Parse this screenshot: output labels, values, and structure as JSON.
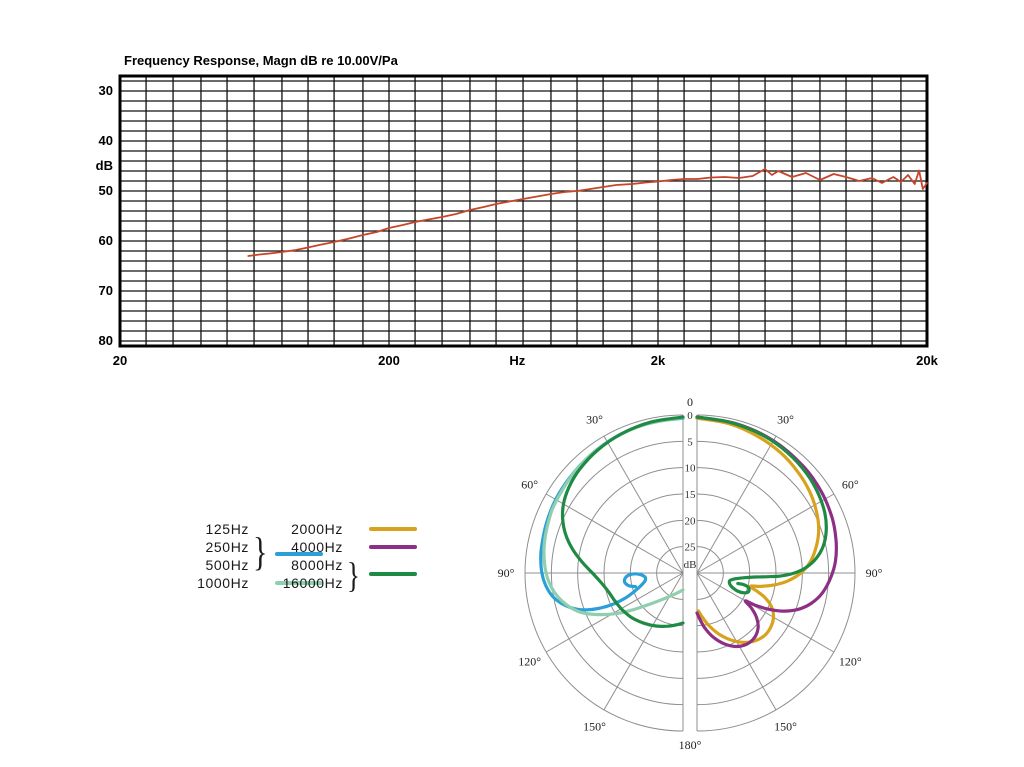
{
  "chart_data": [
    {
      "id": "frequency_response",
      "type": "line",
      "title": "Frequency Response, Magn dB re 10.00V/Pa",
      "line_color": "#c8452a",
      "x_axis": {
        "scale": "log",
        "min": 20,
        "max": 20000,
        "ticks": [
          {
            "f": 20,
            "label": "20"
          },
          {
            "f": 200,
            "label": "200"
          },
          {
            "f": 600,
            "label": "Hz"
          },
          {
            "f": 2000,
            "label": "2k"
          },
          {
            "f": 20000,
            "label": "20k"
          }
        ]
      },
      "y_axis": {
        "min": 27,
        "max": 81,
        "inverted": true,
        "grid_step": 2,
        "ticks": [
          {
            "v": 30,
            "label": "30"
          },
          {
            "v": 40,
            "label": "40"
          },
          {
            "v": 45,
            "label": "dB"
          },
          {
            "v": 50,
            "label": "50"
          },
          {
            "v": 60,
            "label": "60"
          },
          {
            "v": 70,
            "label": "70"
          },
          {
            "v": 80,
            "label": "80"
          }
        ]
      },
      "points": [
        [
          60,
          63
        ],
        [
          66,
          62.7
        ],
        [
          72,
          62.5
        ],
        [
          80,
          62.2
        ],
        [
          90,
          61.8
        ],
        [
          100,
          61.3
        ],
        [
          110,
          60.8
        ],
        [
          125,
          60.2
        ],
        [
          140,
          59.6
        ],
        [
          160,
          58.8
        ],
        [
          180,
          58.2
        ],
        [
          200,
          57.4
        ],
        [
          225,
          56.8
        ],
        [
          250,
          56.2
        ],
        [
          280,
          55.7
        ],
        [
          315,
          55.2
        ],
        [
          355,
          54.6
        ],
        [
          400,
          53.8
        ],
        [
          450,
          53.2
        ],
        [
          500,
          52.6
        ],
        [
          560,
          52.1
        ],
        [
          630,
          51.6
        ],
        [
          710,
          51.1
        ],
        [
          800,
          50.6
        ],
        [
          900,
          50.2
        ],
        [
          1000,
          50.0
        ],
        [
          1120,
          49.6
        ],
        [
          1250,
          49.2
        ],
        [
          1400,
          48.8
        ],
        [
          1600,
          48.6
        ],
        [
          1800,
          48.3
        ],
        [
          2000,
          48.1
        ],
        [
          2240,
          47.8
        ],
        [
          2500,
          47.6
        ],
        [
          2800,
          47.6
        ],
        [
          3150,
          47.3
        ],
        [
          3550,
          47.2
        ],
        [
          4000,
          47.4
        ],
        [
          4500,
          47.0
        ],
        [
          5000,
          45.6
        ],
        [
          5300,
          46.8
        ],
        [
          5600,
          46.0
        ],
        [
          6300,
          47.2
        ],
        [
          7100,
          46.4
        ],
        [
          8000,
          47.8
        ],
        [
          9000,
          46.6
        ],
        [
          10000,
          47.2
        ],
        [
          11200,
          48.0
        ],
        [
          12500,
          47.4
        ],
        [
          13600,
          48.4
        ],
        [
          15000,
          47.2
        ],
        [
          16000,
          48.2
        ],
        [
          17000,
          46.8
        ],
        [
          18000,
          48.6
        ],
        [
          18700,
          45.9
        ],
        [
          19300,
          49.6
        ],
        [
          20000,
          48.4
        ]
      ]
    },
    {
      "id": "polar_pattern",
      "type": "polar",
      "r_axis": {
        "max_db": 30,
        "unit_label": "dB",
        "labels": [
          {
            "db": 0,
            "label": "0"
          },
          {
            "db": 5,
            "label": "5"
          },
          {
            "db": 10,
            "label": "10"
          },
          {
            "db": 15,
            "label": "15"
          },
          {
            "db": 20,
            "label": "20"
          },
          {
            "db": 25,
            "label": "25"
          }
        ]
      },
      "angle_labels": {
        "top": "0",
        "bottom": "180°",
        "sides": [
          {
            "deg": 30,
            "label": "30°"
          },
          {
            "deg": 60,
            "label": "60°"
          },
          {
            "deg": 90,
            "label": "90°"
          },
          {
            "deg": 120,
            "label": "120°"
          },
          {
            "deg": 150,
            "label": "150°"
          }
        ]
      },
      "series": [
        {
          "name": "125-500Hz",
          "color": "#2b9fd8",
          "side": "left",
          "points": [
            [
              0,
              0.6
            ],
            [
              10,
              0.8
            ],
            [
              20,
              1.0
            ],
            [
              30,
              1.3
            ],
            [
              40,
              1.6
            ],
            [
              50,
              1.9
            ],
            [
              60,
              2.1
            ],
            [
              70,
              2.4
            ],
            [
              80,
              2.7
            ],
            [
              85,
              2.9
            ],
            [
              90,
              3.2
            ],
            [
              95,
              3.8
            ],
            [
              100,
              4.8
            ],
            [
              104,
              6.2
            ],
            [
              108,
              8.2
            ],
            [
              111,
              10.5
            ],
            [
              113,
              13
            ],
            [
              114,
              15.5
            ],
            [
              113.5,
              18
            ],
            [
              111,
              20
            ],
            [
              107,
              21.6
            ],
            [
              102,
              22.6
            ],
            [
              97,
              22.8
            ],
            [
              93,
              22.2
            ],
            [
              91,
              21
            ],
            [
              92,
              19.8
            ],
            [
              95,
              19
            ],
            [
              99,
              18.8
            ],
            [
              103,
              19.4
            ],
            [
              106,
              20.6
            ]
          ]
        },
        {
          "name": "1000Hz",
          "color": "#8fcfae",
          "side": "left",
          "points": [
            [
              0,
              0.5
            ],
            [
              15,
              0.9
            ],
            [
              30,
              1.3
            ],
            [
              45,
              1.8
            ],
            [
              60,
              2.3
            ],
            [
              70,
              2.7
            ],
            [
              80,
              3.2
            ],
            [
              90,
              4.0
            ],
            [
              98,
              5.2
            ],
            [
              105,
              7.0
            ],
            [
              111,
              9.2
            ],
            [
              116,
              12
            ],
            [
              121,
              15
            ],
            [
              126,
              18
            ],
            [
              131,
              20.5
            ],
            [
              137,
              22.5
            ],
            [
              144,
              24
            ],
            [
              153,
              25.2
            ],
            [
              163,
              26
            ],
            [
              172,
              26.5
            ],
            [
              180,
              26.8
            ]
          ]
        },
        {
          "name": "2000Hz",
          "color": "#d8a21c",
          "side": "right",
          "points": [
            [
              0,
              0.6
            ],
            [
              12,
              1.0
            ],
            [
              24,
              1.6
            ],
            [
              35,
              2.2
            ],
            [
              45,
              2.9
            ],
            [
              54,
              3.6
            ],
            [
              62,
              4.4
            ],
            [
              70,
              5.4
            ],
            [
              77,
              6.7
            ],
            [
              84,
              8.3
            ],
            [
              90,
              10.3
            ],
            [
              95,
              12.7
            ],
            [
              99,
              15.3
            ],
            [
              102,
              17.8
            ],
            [
              104,
              19.6
            ],
            [
              107,
              18.0
            ],
            [
              110,
              16.2
            ],
            [
              114,
              14.6
            ],
            [
              119,
              13.4
            ],
            [
              125,
              12.7
            ],
            [
              132,
              12.5
            ],
            [
              139,
              13.0
            ],
            [
              146,
              14.1
            ],
            [
              153,
              15.7
            ],
            [
              160,
              17.6
            ],
            [
              167,
              19.7
            ],
            [
              173,
              21.5
            ],
            [
              178,
              22.8
            ]
          ]
        },
        {
          "name": "4000Hz",
          "color": "#8e2f86",
          "side": "right",
          "points": [
            [
              0,
              0.4
            ],
            [
              15,
              0.7
            ],
            [
              30,
              1.0
            ],
            [
              45,
              1.4
            ],
            [
              57,
              1.8
            ],
            [
              68,
              2.3
            ],
            [
              77,
              2.9
            ],
            [
              85,
              3.6
            ],
            [
              92,
              4.6
            ],
            [
              99,
              5.9
            ],
            [
              105,
              7.6
            ],
            [
              110,
              9.7
            ],
            [
              114,
              12.2
            ],
            [
              117,
              14.9
            ],
            [
              119,
              17.4
            ],
            [
              120,
              19.4
            ],
            [
              123,
              17.6
            ],
            [
              127,
              15.8
            ],
            [
              132,
              14.4
            ],
            [
              138,
              13.6
            ],
            [
              145,
              13.5
            ],
            [
              152,
              14.2
            ],
            [
              159,
              15.6
            ],
            [
              166,
              17.5
            ],
            [
              172,
              19.5
            ],
            [
              177,
              21.4
            ],
            [
              180,
              22.4
            ]
          ]
        },
        {
          "name": "8000-16000Hz-left",
          "color": "#1f8a44",
          "side": "left",
          "points": [
            [
              0,
              0.4
            ],
            [
              12,
              0.7
            ],
            [
              24,
              1.1
            ],
            [
              35,
              1.6
            ],
            [
              45,
              2.2
            ],
            [
              53,
              2.9
            ],
            [
              60,
              3.8
            ],
            [
              66,
              5.0
            ],
            [
              72,
              6.6
            ],
            [
              78,
              8.6
            ],
            [
              84,
              10.8
            ],
            [
              90,
              12.8
            ],
            [
              97,
              14.4
            ],
            [
              104,
              15.4
            ],
            [
              112,
              16.0
            ],
            [
              121,
              16.5
            ],
            [
              131,
              17.1
            ],
            [
              142,
              17.9
            ],
            [
              153,
              18.7
            ],
            [
              164,
              19.5
            ],
            [
              173,
              20.1
            ],
            [
              180,
              20.5
            ]
          ]
        },
        {
          "name": "8000-16000Hz-right",
          "color": "#1f8a44",
          "side": "right",
          "points": [
            [
              0,
              0.4
            ],
            [
              12,
              0.7
            ],
            [
              25,
              1.0
            ],
            [
              37,
              1.4
            ],
            [
              48,
              1.9
            ],
            [
              57,
              2.5
            ],
            [
              65,
              3.2
            ],
            [
              72,
              4.2
            ],
            [
              78,
              5.5
            ],
            [
              83,
              7.2
            ],
            [
              87,
              9.2
            ],
            [
              90,
              11.5
            ],
            [
              92,
              14
            ],
            [
              93,
              16.5
            ],
            [
              94,
              19
            ],
            [
              96,
              21.2
            ],
            [
              99,
              22.8
            ],
            [
              103,
              23.6
            ],
            [
              108,
              23.5
            ],
            [
              112,
              22.8
            ],
            [
              114,
              21.6
            ],
            [
              113,
              20.4
            ],
            [
              110,
              19.6
            ],
            [
              106,
              19.8
            ],
            [
              104,
              20.8
            ],
            [
              104.5,
              22
            ]
          ]
        }
      ]
    }
  ],
  "legend": {
    "groups_left": [
      {
        "labels": [
          "125Hz",
          "250Hz",
          "500Hz"
        ],
        "brace": true,
        "color": "#2b9fd8"
      },
      {
        "labels": [
          "1000Hz"
        ],
        "brace": false,
        "color": "#8fcfae"
      }
    ],
    "groups_right": [
      {
        "labels": [
          "2000Hz"
        ],
        "brace": false,
        "color": "#d8a21c"
      },
      {
        "labels": [
          "4000Hz"
        ],
        "brace": false,
        "color": "#8e2f86"
      },
      {
        "labels": [
          "8000Hz",
          "16000Hz"
        ],
        "brace": true,
        "color": "#1f8a44"
      }
    ]
  }
}
